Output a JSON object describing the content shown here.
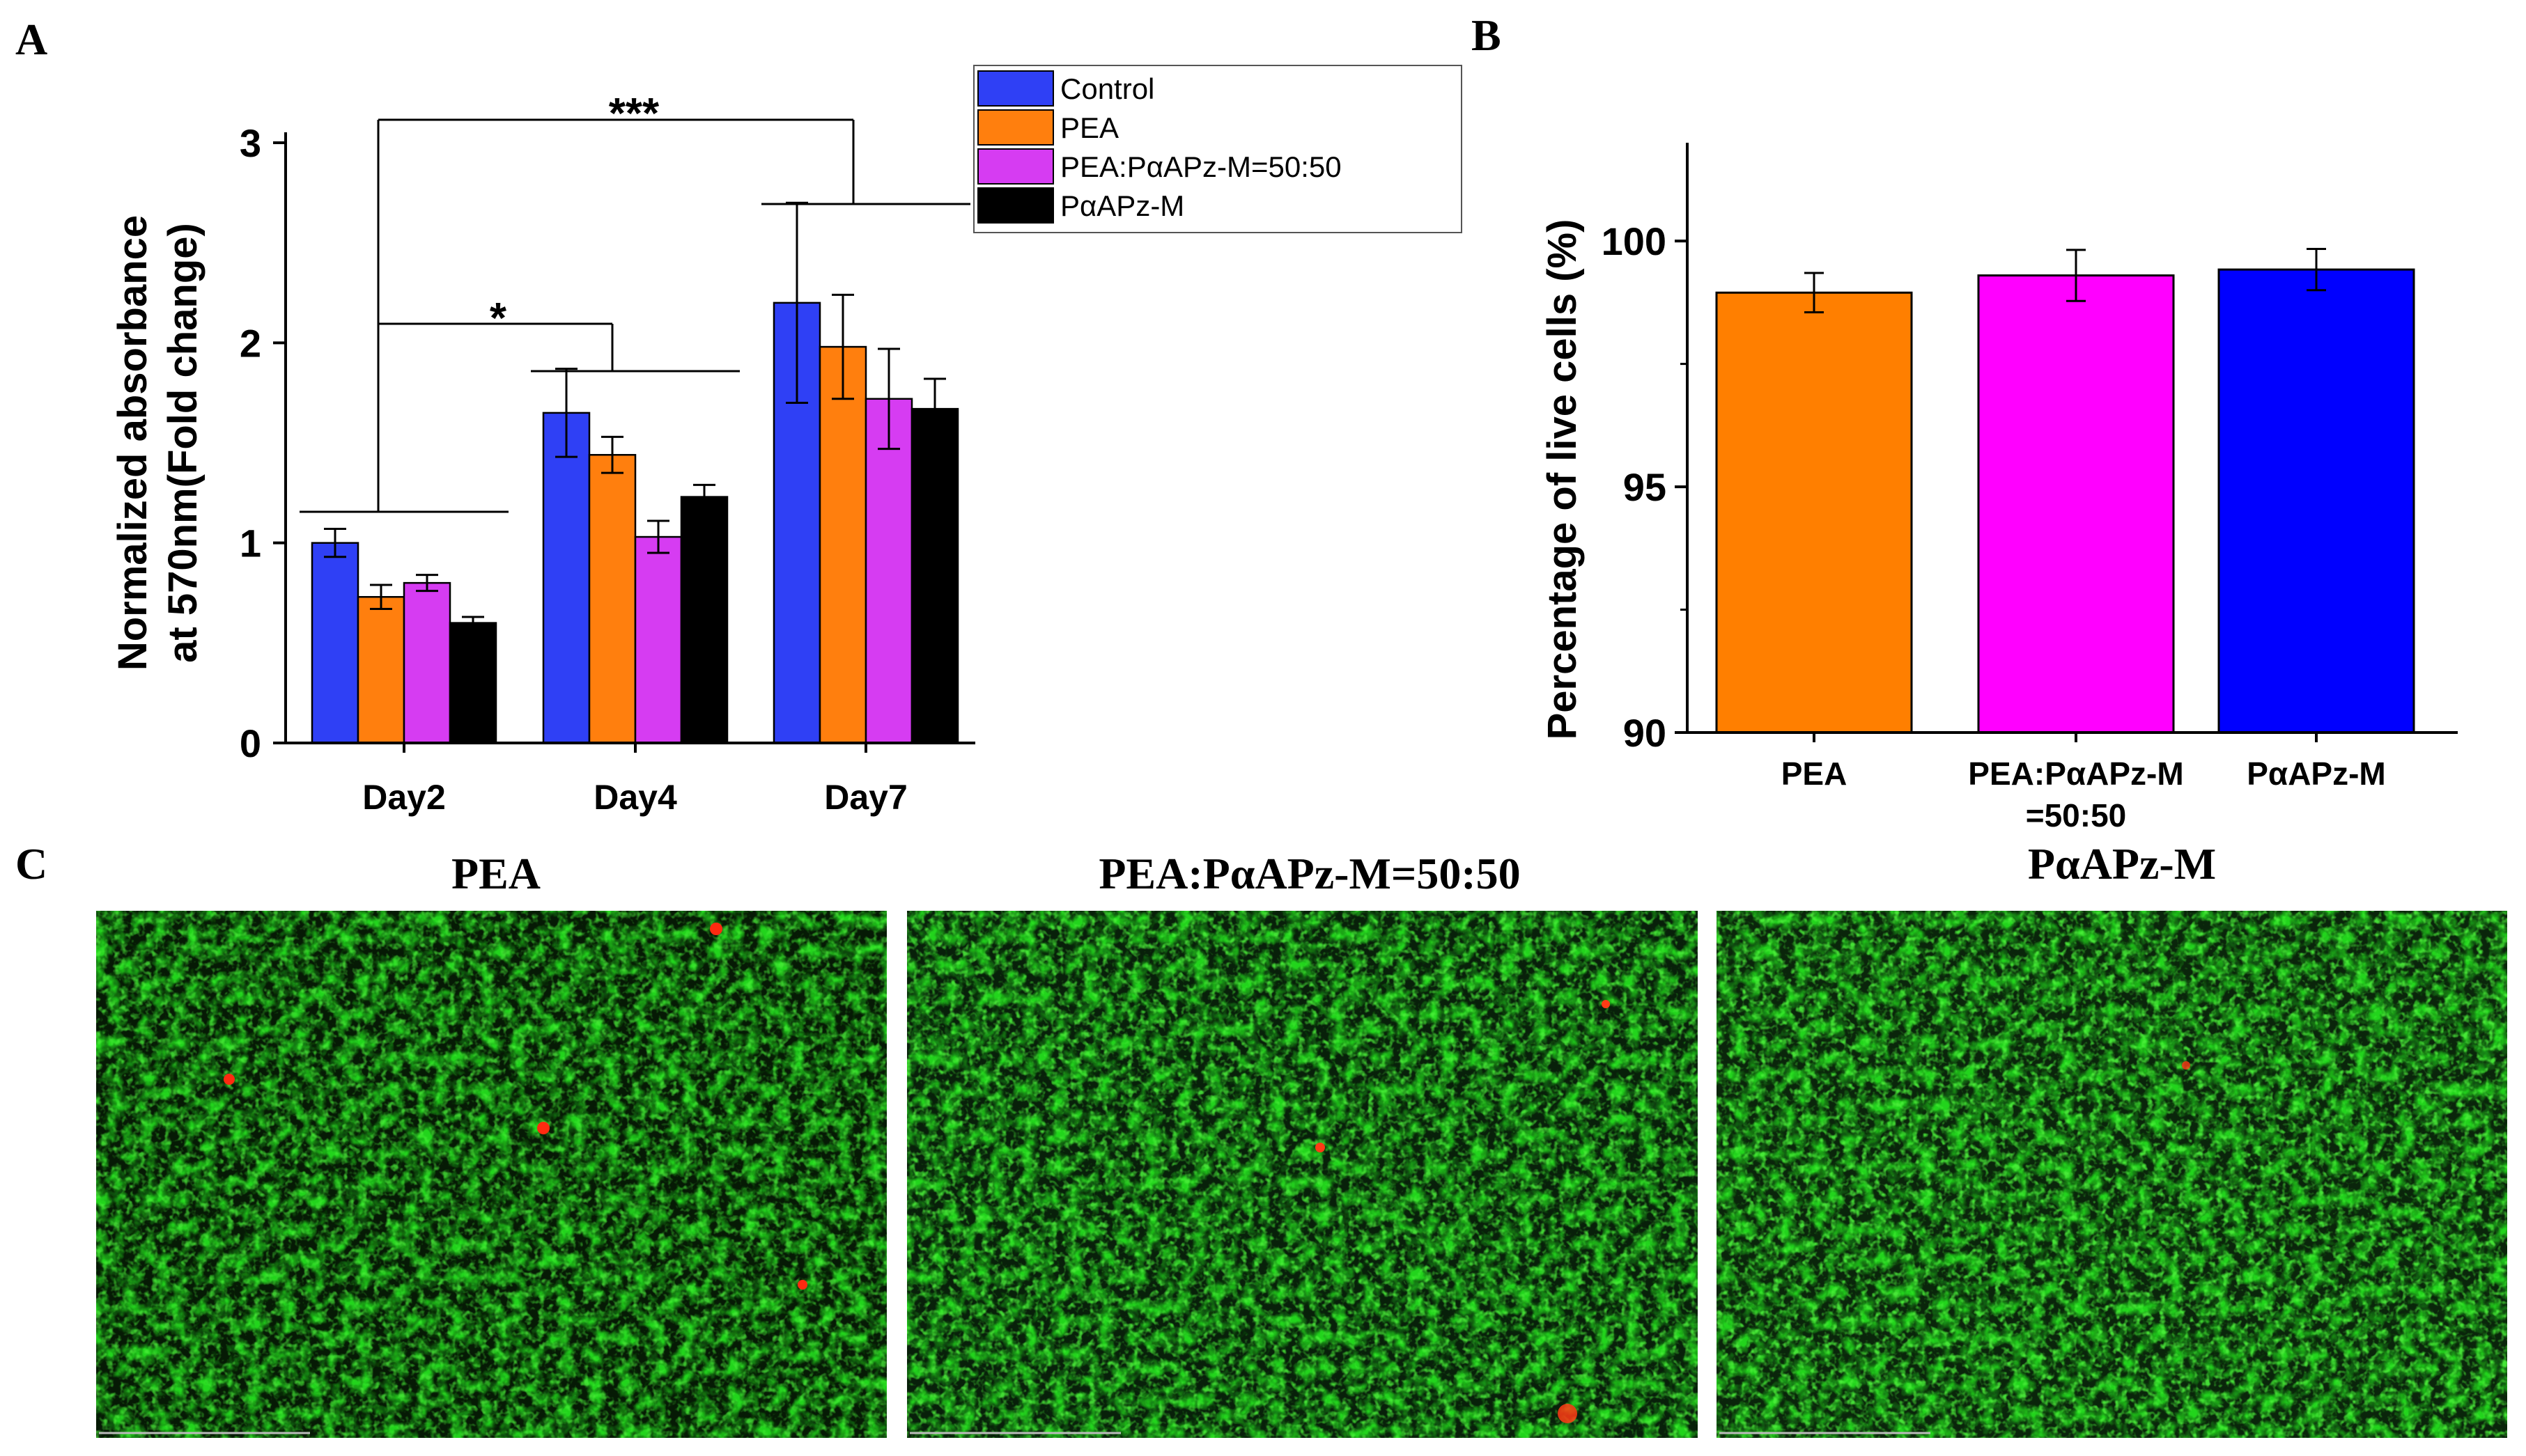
{
  "panel_labels": {
    "a": "A",
    "b": "B",
    "c": "C"
  },
  "chart_data": [
    {
      "type": "bar",
      "panel": "A",
      "title": "",
      "xlabel": "",
      "ylabel_line1": "Normalized absorbance",
      "ylabel_line2": "at 570nm(Fold change)",
      "ylim": [
        0,
        3
      ],
      "yticks": [
        0,
        1,
        2,
        3
      ],
      "categories": [
        "Day2",
        "Day4",
        "Day7"
      ],
      "legend_position": "top-right",
      "series": [
        {
          "name": "Control",
          "color": "#2f40f5",
          "values": [
            1.0,
            1.65,
            2.2
          ],
          "errors": [
            0.07,
            0.22,
            0.5
          ]
        },
        {
          "name": "PEA",
          "color": "#ff7f0e",
          "values": [
            0.73,
            1.44,
            1.98
          ],
          "errors": [
            0.06,
            0.09,
            0.26
          ]
        },
        {
          "name": "PEA:PαAPz-M=50:50",
          "color": "#d63cf2",
          "values": [
            0.8,
            1.03,
            1.72
          ],
          "errors": [
            0.04,
            0.08,
            0.25
          ]
        },
        {
          "name": "PαAPz-M",
          "color": "#000000",
          "values": [
            0.6,
            1.23,
            1.67
          ],
          "errors": [
            0.03,
            0.06,
            0.15
          ]
        }
      ],
      "significance": [
        {
          "from": "Day2",
          "to": "Day4",
          "label": "*"
        },
        {
          "from": "Day2",
          "to": "Day7",
          "label": "***"
        }
      ]
    },
    {
      "type": "bar",
      "panel": "B",
      "title": "",
      "xlabel": "",
      "ylabel": "Percentage of live cells (%)",
      "ylim": [
        90,
        102
      ],
      "yticks": [
        90,
        95,
        100
      ],
      "categories": [
        {
          "line1": "PEA",
          "line2": ""
        },
        {
          "line1": "PEA:PαAPz-M",
          "line2": "=50:50"
        },
        {
          "line1": "PαAPz-M",
          "line2": ""
        }
      ],
      "values": [
        98.95,
        99.3,
        99.42
      ],
      "errors": [
        0.4,
        0.52,
        0.42
      ],
      "colors": [
        "#ff7f00",
        "#ff00ff",
        "#0000ff"
      ]
    }
  ],
  "micrographs": [
    {
      "title": "PEA"
    },
    {
      "title": "PEA:PαAPz-M=50:50"
    },
    {
      "title": "PαAPz-M"
    }
  ]
}
